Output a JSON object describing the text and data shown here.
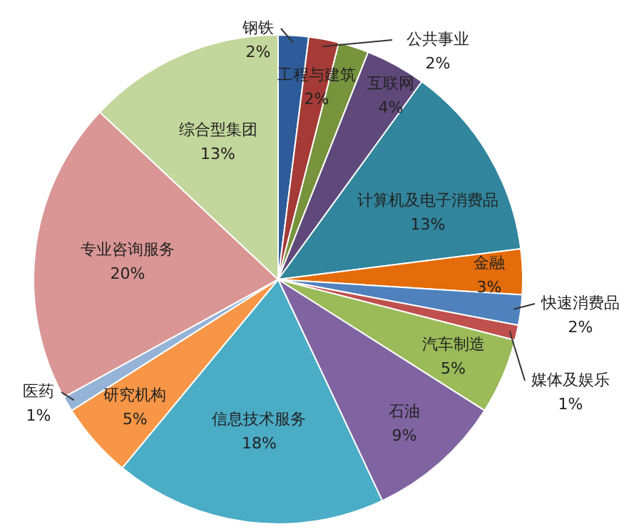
{
  "chart_data": {
    "type": "pie",
    "categories": [
      "钢铁",
      "公共事业",
      "工程与建筑",
      "互联网",
      "计算机及电子消费品",
      "金融",
      "快速消费品",
      "媒体及娱乐",
      "汽车制造",
      "石油",
      "信息技术服务",
      "研究机构",
      "医药",
      "专业咨询服务",
      "综合型集团"
    ],
    "values": [
      2,
      2,
      2,
      4,
      13,
      3,
      2,
      1,
      5,
      9,
      18,
      5,
      1,
      20,
      13
    ],
    "colors": [
      "#2e5c9a",
      "#a53a36",
      "#77933c",
      "#5f497a",
      "#31859c",
      "#e46c0a",
      "#4f81bd",
      "#c0504d",
      "#9bbb59",
      "#8064a2",
      "#4bacc6",
      "#f79646",
      "#95b3d7",
      "#d99694",
      "#c3d69b"
    ],
    "value_labels": [
      "2%",
      "2%",
      "2%",
      "4%",
      "13%",
      "3%",
      "2%",
      "1%",
      "5%",
      "9%",
      "18%",
      "5%",
      "1%",
      "20%",
      "13%"
    ],
    "legend": false
  }
}
